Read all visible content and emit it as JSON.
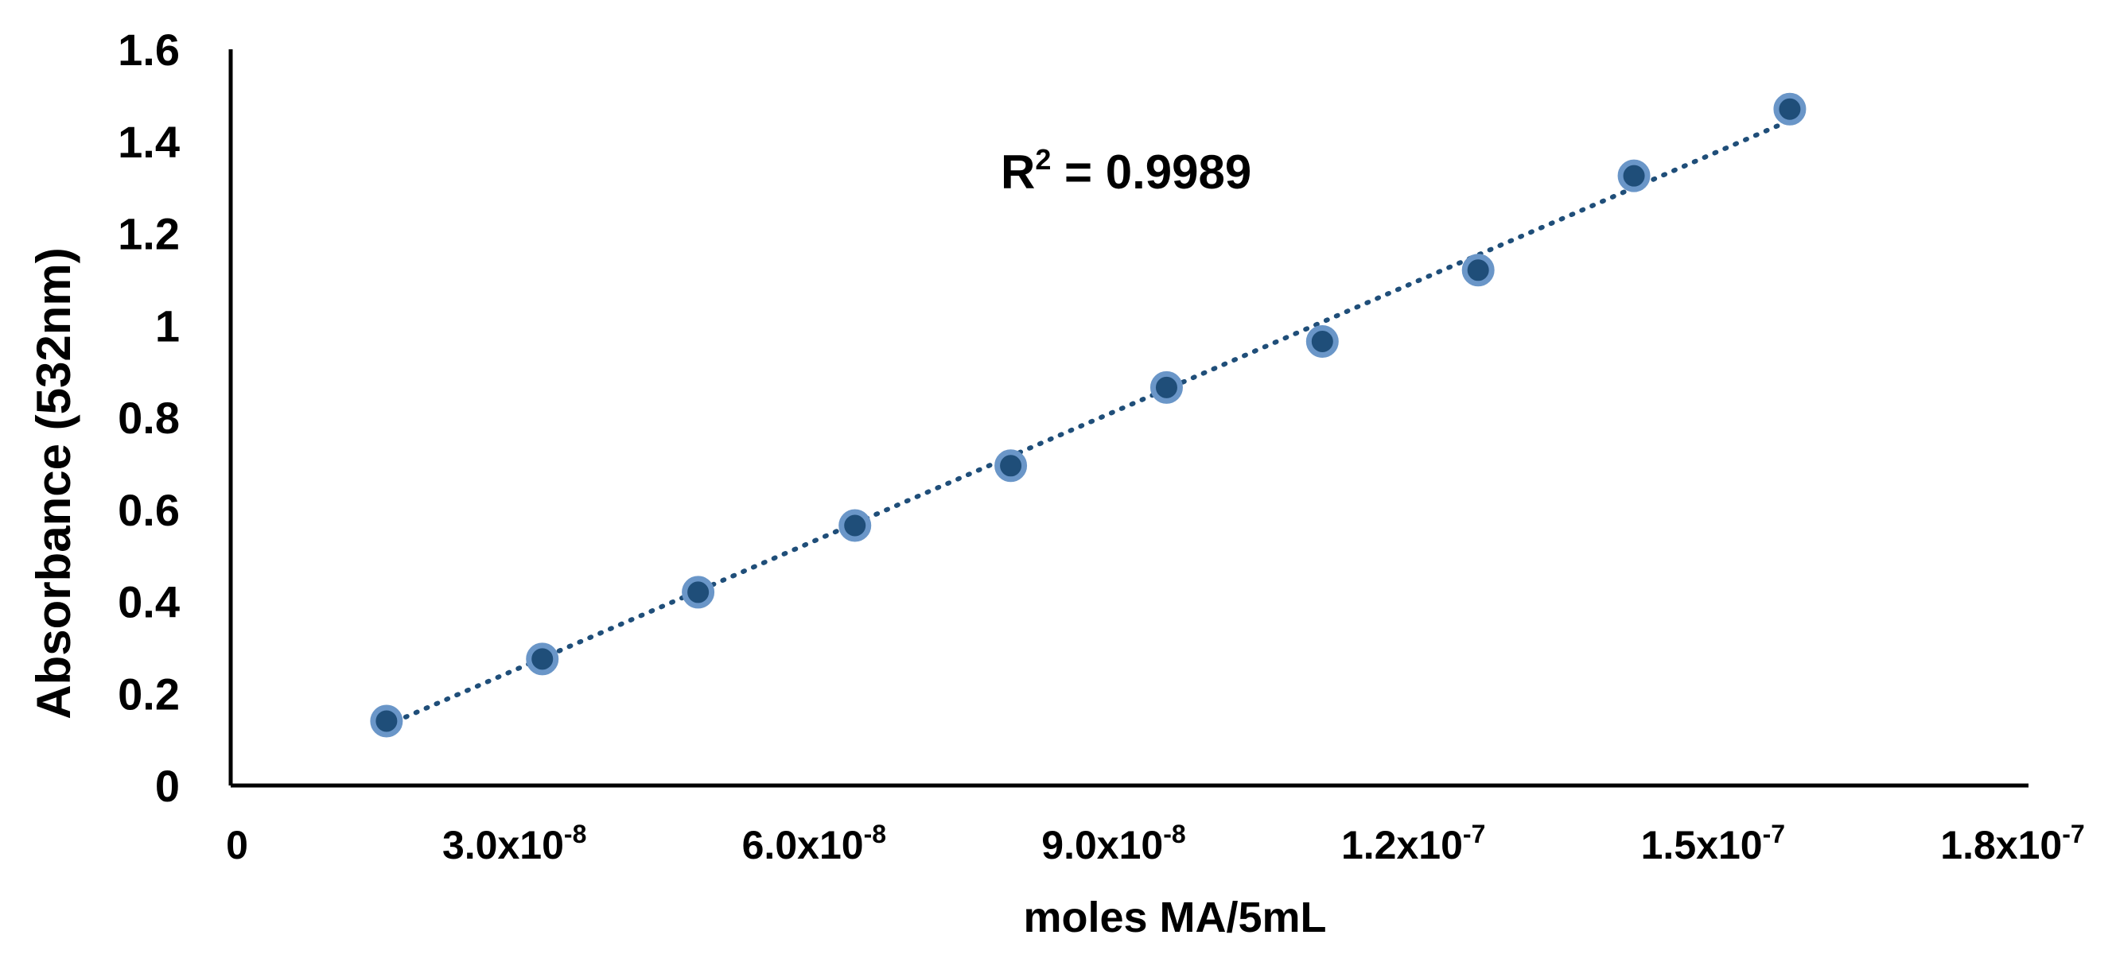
{
  "chart_data": {
    "type": "scatter",
    "title": "",
    "xlabel": "moles MA/5mL",
    "ylabel": "Absorbance (532nm)",
    "xlim": [
      0,
      1.8e-07
    ],
    "ylim": [
      0,
      1.6
    ],
    "x_ticks": [
      {
        "value": 0,
        "mantissa": "0",
        "exponent": ""
      },
      {
        "value": 3e-08,
        "mantissa": "3.0x10",
        "exponent": "-8"
      },
      {
        "value": 6e-08,
        "mantissa": "6.0x10",
        "exponent": "-8"
      },
      {
        "value": 9e-08,
        "mantissa": "9.0x10",
        "exponent": "-8"
      },
      {
        "value": 1.2e-07,
        "mantissa": "1.2x10",
        "exponent": "-7"
      },
      {
        "value": 1.5e-07,
        "mantissa": "1.5x10",
        "exponent": "-7"
      },
      {
        "value": 1.8e-07,
        "mantissa": "1.8x10",
        "exponent": "-7"
      }
    ],
    "y_ticks": [
      {
        "value": 0,
        "label": "0"
      },
      {
        "value": 0.2,
        "label": "0.2"
      },
      {
        "value": 0.4,
        "label": "0.4"
      },
      {
        "value": 0.6,
        "label": "0.6"
      },
      {
        "value": 0.8,
        "label": "0.8"
      },
      {
        "value": 1.0,
        "label": "1"
      },
      {
        "value": 1.2,
        "label": "1.2"
      },
      {
        "value": 1.4,
        "label": "1.4"
      },
      {
        "value": 1.6,
        "label": "1.6"
      }
    ],
    "series": [
      {
        "name": "Absorbance",
        "x": [
          1.56e-08,
          3.12e-08,
          4.68e-08,
          6.25e-08,
          7.81e-08,
          9.37e-08,
          1.093e-07,
          1.249e-07,
          1.405e-07,
          1.561e-07
        ],
        "y": [
          0.14,
          0.275,
          0.42,
          0.565,
          0.695,
          0.865,
          0.965,
          1.12,
          1.325,
          1.47
        ]
      }
    ],
    "trendline": {
      "type": "linear",
      "style": "dotted",
      "x_start": 1.56e-08,
      "x_end": 1.561e-07,
      "y_start": 0.135,
      "y_end": 1.445
    },
    "annotation": {
      "prefix": "R",
      "superscript": "2",
      "suffix": " = 0.9989"
    },
    "colors": {
      "marker_fill": "#1f4e79",
      "marker_stroke": "#6a96c8",
      "trendline": "#1f4e79",
      "axis": "#000000"
    }
  }
}
